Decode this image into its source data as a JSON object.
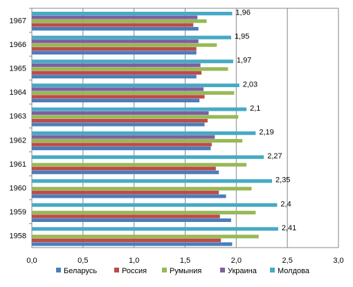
{
  "chart_data": {
    "type": "bar",
    "orientation": "horizontal",
    "categories": [
      "1958",
      "1959",
      "1960",
      "1961",
      "1962",
      "1963",
      "1964",
      "1965",
      "1966",
      "1967"
    ],
    "series": [
      {
        "name": "Беларусь",
        "color": "#4a7ebb",
        "values": [
          1.96,
          1.95,
          1.9,
          1.83,
          1.75,
          1.69,
          1.64,
          1.61,
          1.61,
          1.63
        ]
      },
      {
        "name": "Россия",
        "color": "#be4b48",
        "values": [
          1.85,
          1.84,
          1.83,
          1.8,
          1.76,
          1.72,
          1.69,
          1.66,
          1.61,
          1.58
        ]
      },
      {
        "name": "Румыния",
        "color": "#98b954",
        "values": [
          2.22,
          2.19,
          2.15,
          2.1,
          2.06,
          2.02,
          1.98,
          1.92,
          1.81,
          1.71
        ]
      },
      {
        "name": "Украина",
        "color": "#7d60a0",
        "values": [
          null,
          null,
          null,
          null,
          1.79,
          1.73,
          1.68,
          1.65,
          1.63,
          1.62
        ]
      },
      {
        "name": "Молдова",
        "color": "#46aac5",
        "values": [
          2.41,
          2.4,
          2.35,
          2.27,
          2.19,
          2.1,
          2.03,
          1.97,
          1.95,
          1.96
        ]
      }
    ],
    "data_labels_series": "Молдова",
    "data_labels": [
      "2,41",
      "2,4",
      "2,35",
      "2,27",
      "2,19",
      "2,1",
      "2,03",
      "1,97",
      "1,95",
      "1,96"
    ],
    "x_ticks": [
      "0,0",
      "0,5",
      "1,0",
      "1,5",
      "2,0",
      "2,5",
      "3,0"
    ],
    "x_tick_values": [
      0,
      0.5,
      1.0,
      1.5,
      2.0,
      2.5,
      3.0
    ],
    "xlim": [
      0,
      3.0
    ],
    "title": "",
    "xlabel": "",
    "ylabel": "",
    "grid": "vertical",
    "legend_position": "bottom"
  }
}
